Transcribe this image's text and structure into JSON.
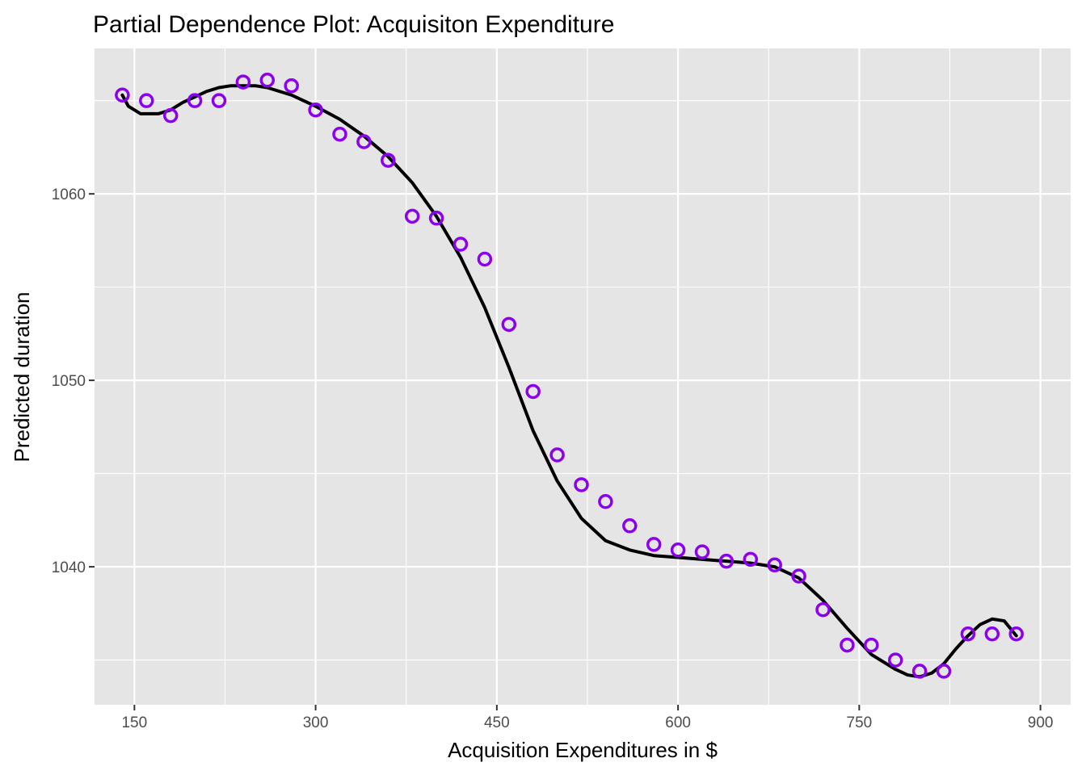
{
  "chart_data": {
    "type": "scatter",
    "title": "Partial Dependence Plot: Acquisiton Expenditure",
    "xlabel": "Acquisition Expenditures in $",
    "ylabel": "Predicted duration",
    "xlim": [
      117,
      925
    ],
    "ylim": [
      1032.6,
      1067.8
    ],
    "x_ticks": [
      150,
      300,
      450,
      600,
      750,
      900
    ],
    "x_minor_ticks": [
      225,
      375,
      525,
      675,
      825
    ],
    "y_ticks": [
      1040,
      1050,
      1060
    ],
    "y_minor_ticks": [
      1035,
      1045,
      1055,
      1065
    ],
    "grid": true,
    "legend": "none",
    "point_color": "#8B00EE",
    "line_color": "#000000",
    "panel_color": "#E5E5E5",
    "points": {
      "x": [
        140,
        160,
        180,
        200,
        220,
        240,
        260,
        280,
        300,
        320,
        340,
        360,
        380,
        400,
        420,
        440,
        460,
        480,
        500,
        520,
        540,
        560,
        580,
        600,
        620,
        640,
        660,
        680,
        700,
        720,
        740,
        760,
        780,
        800,
        820,
        840,
        860,
        880
      ],
      "y": [
        1065.3,
        1065.0,
        1064.2,
        1065.0,
        1065.0,
        1066.0,
        1066.1,
        1065.8,
        1064.5,
        1063.2,
        1062.8,
        1061.8,
        1058.8,
        1058.7,
        1057.3,
        1056.5,
        1053.0,
        1049.4,
        1046.0,
        1044.4,
        1043.5,
        1042.2,
        1041.2,
        1040.9,
        1040.8,
        1040.3,
        1040.4,
        1040.1,
        1039.5,
        1037.7,
        1035.8,
        1035.8,
        1035.0,
        1034.4,
        1034.4,
        1036.4,
        1036.4,
        1036.4
      ]
    },
    "smooth": {
      "x": [
        140,
        145,
        150,
        155,
        160,
        165,
        170,
        175,
        180,
        190,
        200,
        210,
        220,
        230,
        240,
        250,
        260,
        270,
        280,
        290,
        300,
        320,
        340,
        360,
        380,
        400,
        420,
        440,
        460,
        480,
        500,
        520,
        540,
        560,
        580,
        600,
        620,
        640,
        660,
        680,
        700,
        720,
        740,
        760,
        780,
        790,
        800,
        810,
        820,
        830,
        840,
        850,
        860,
        870,
        880
      ],
      "y": [
        1065.3,
        1064.7,
        1064.5,
        1064.3,
        1064.3,
        1064.3,
        1064.3,
        1064.4,
        1064.5,
        1064.9,
        1065.2,
        1065.5,
        1065.7,
        1065.8,
        1065.8,
        1065.8,
        1065.7,
        1065.5,
        1065.3,
        1065.0,
        1064.7,
        1064.0,
        1063.1,
        1062.0,
        1060.6,
        1058.8,
        1056.6,
        1053.9,
        1050.7,
        1047.3,
        1044.6,
        1042.6,
        1041.4,
        1040.9,
        1040.6,
        1040.5,
        1040.4,
        1040.3,
        1040.2,
        1040.0,
        1039.4,
        1038.2,
        1036.7,
        1035.3,
        1034.5,
        1034.2,
        1034.1,
        1034.3,
        1034.8,
        1035.6,
        1036.3,
        1036.9,
        1037.2,
        1037.1,
        1036.3
      ]
    }
  }
}
